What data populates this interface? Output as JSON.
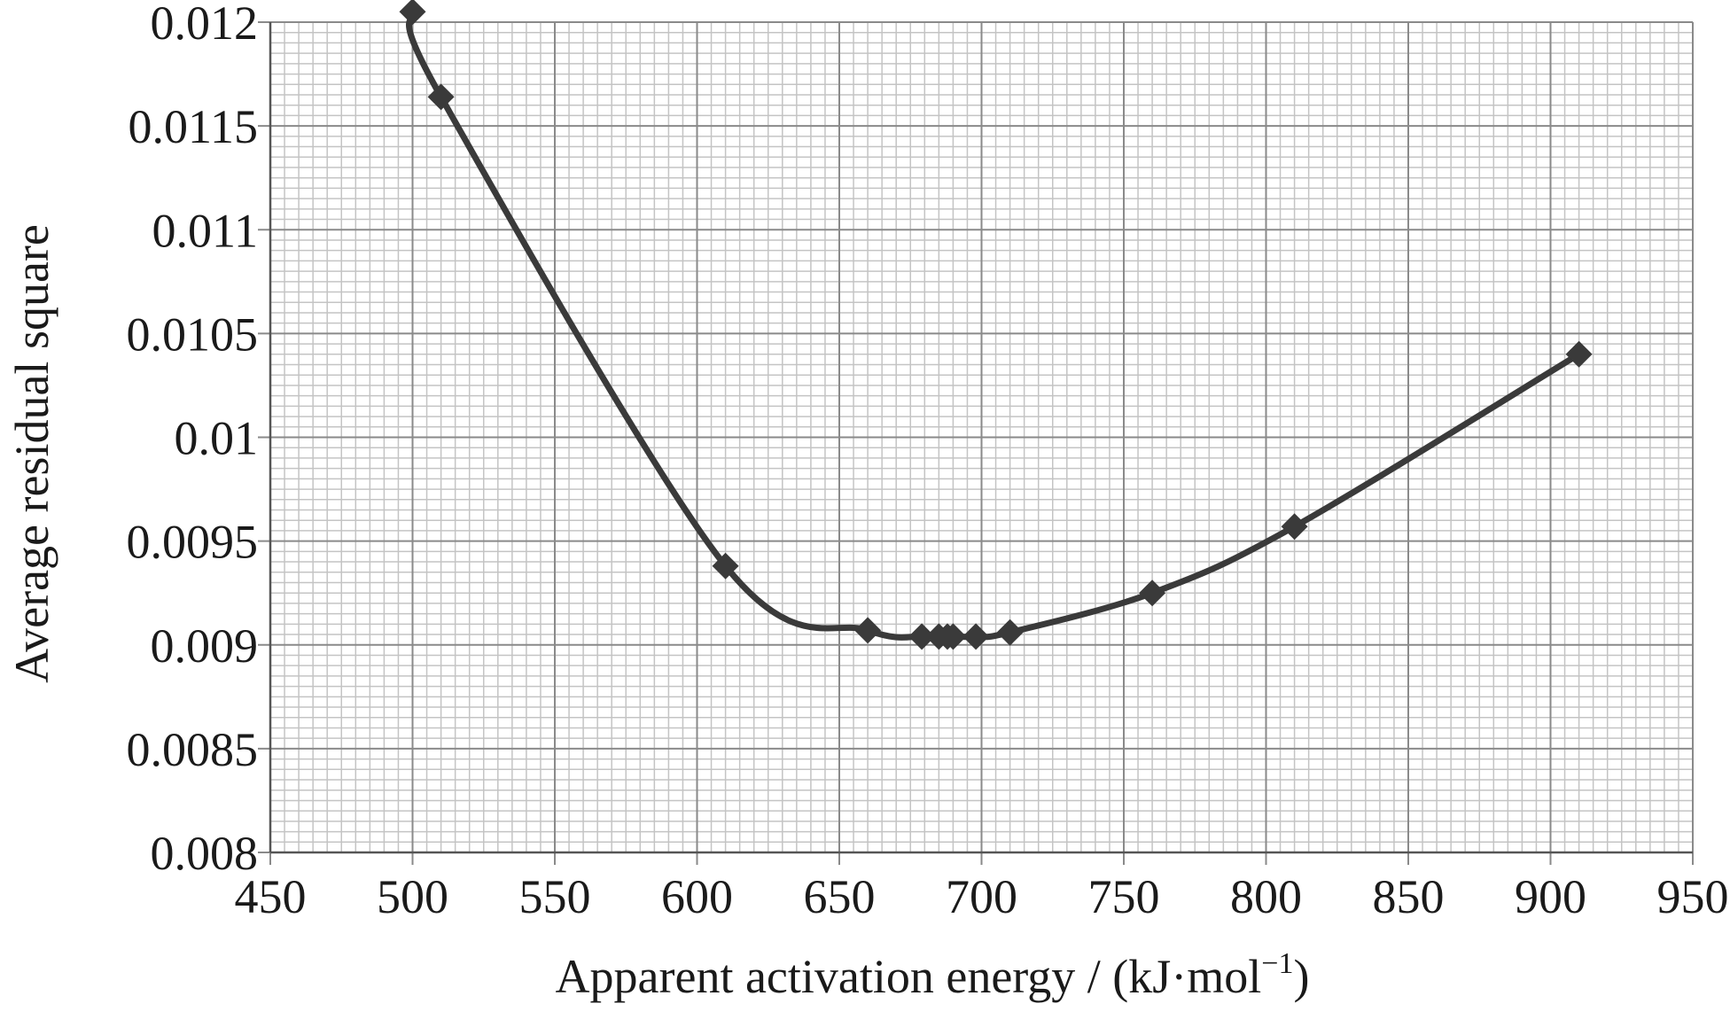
{
  "chart_data": {
    "type": "line",
    "xlabel": "Apparent activation energy / (kJ·mol",
    "xlabel_sup": "−1",
    "xlabel_end": ")",
    "ylabel": "Average residual square",
    "xlim": [
      450,
      950
    ],
    "ylim": [
      0.008,
      0.012
    ],
    "x_ticks": [
      450,
      500,
      550,
      600,
      650,
      700,
      750,
      800,
      850,
      900,
      950
    ],
    "x_tick_labels": [
      "450",
      "500",
      "550",
      "600",
      "650",
      "700",
      "750",
      "800",
      "850",
      "900",
      "950"
    ],
    "y_ticks": [
      0.008,
      0.0085,
      0.009,
      0.0095,
      0.01,
      0.0105,
      0.011,
      0.0115,
      0.012
    ],
    "y_tick_labels": [
      "0.008",
      "0.0085",
      "0.009",
      "0.0095",
      "0.01",
      "0.0105",
      "0.011",
      "0.0115",
      "0.012"
    ],
    "grid": "on, with 10 minor divisions per major interval",
    "line_color": "#3a3a3a",
    "marker": "diamond",
    "series": [
      {
        "x": [
          500,
          510,
          610,
          660,
          679,
          685,
          688,
          690,
          698,
          710,
          760,
          810,
          910
        ],
        "y": [
          0.01205,
          0.01164,
          0.00938,
          0.00907,
          0.00904,
          0.00904,
          0.00904,
          0.00904,
          0.00904,
          0.00906,
          0.00925,
          0.00957,
          0.0104
        ]
      }
    ]
  }
}
